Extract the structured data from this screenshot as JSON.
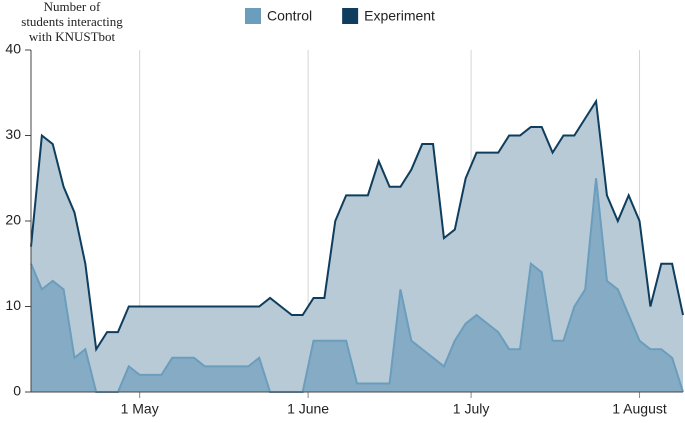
{
  "chart_data": {
    "type": "area",
    "y_label": [
      "Number of",
      "students interacting",
      "with KNUSTbot"
    ],
    "x": [
      "04-11",
      "04-13",
      "04-15",
      "04-17",
      "04-19",
      "04-21",
      "04-23",
      "04-25",
      "04-27",
      "04-29",
      "05-01",
      "05-03",
      "05-05",
      "05-07",
      "05-09",
      "05-11",
      "05-13",
      "05-15",
      "05-17",
      "05-19",
      "05-21",
      "05-23",
      "05-25",
      "05-27",
      "05-29",
      "05-31",
      "06-02",
      "06-04",
      "06-06",
      "06-08",
      "06-10",
      "06-12",
      "06-14",
      "06-16",
      "06-18",
      "06-20",
      "06-22",
      "06-24",
      "06-26",
      "06-28",
      "06-30",
      "07-02",
      "07-04",
      "07-06",
      "07-08",
      "07-10",
      "07-12",
      "07-14",
      "07-16",
      "07-18",
      "07-20",
      "07-22",
      "07-24",
      "07-26",
      "07-28",
      "07-30",
      "08-01",
      "08-03",
      "08-05",
      "08-07",
      "08-09"
    ],
    "series": [
      {
        "name": "Control",
        "color": "#6b9dbd",
        "fill": "#7ea7c2",
        "values": [
          15,
          12,
          13,
          12,
          4,
          5,
          0,
          0,
          0,
          3,
          2,
          2,
          2,
          4,
          4,
          4,
          3,
          3,
          3,
          3,
          3,
          4,
          0,
          0,
          0,
          0,
          6,
          6,
          6,
          6,
          1,
          1,
          1,
          1,
          12,
          6,
          5,
          4,
          3,
          6,
          8,
          9,
          8,
          7,
          5,
          5,
          15,
          14,
          6,
          6,
          10,
          12,
          25,
          13,
          12,
          9,
          6,
          5,
          5,
          4,
          0
        ]
      },
      {
        "name": "Experiment",
        "color": "#0e3d5e",
        "fill": "#b7cad5",
        "values": [
          17,
          30,
          29,
          24,
          21,
          15,
          5,
          7,
          7,
          10,
          10,
          10,
          10,
          10,
          10,
          10,
          10,
          10,
          10,
          10,
          10,
          10,
          11,
          10,
          9,
          9,
          11,
          11,
          20,
          23,
          23,
          23,
          27,
          24,
          24,
          26,
          29,
          29,
          18,
          19,
          25,
          28,
          28,
          28,
          30,
          30,
          31,
          31,
          28,
          30,
          30,
          32,
          34,
          23,
          20,
          23,
          20,
          10,
          15,
          15,
          9
        ]
      }
    ],
    "xlim": [
      "04-11",
      "08-09"
    ],
    "xticks": [
      {
        "value": "05-01",
        "label": "1 May"
      },
      {
        "value": "06-01",
        "label": "1 June"
      },
      {
        "value": "07-01",
        "label": "1 July"
      },
      {
        "value": "08-01",
        "label": "1 August"
      }
    ],
    "ylim": [
      0,
      40
    ],
    "yticks": [
      0,
      10,
      20,
      30,
      40
    ],
    "grid": true,
    "legend": "top"
  }
}
